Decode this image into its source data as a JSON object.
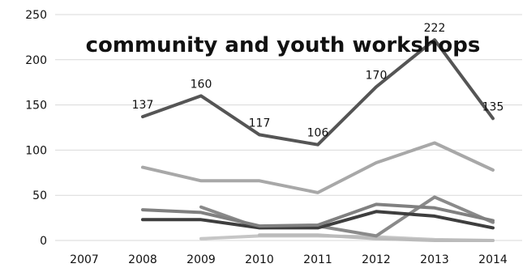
{
  "chart_data": {
    "type": "line",
    "title": "community and youth workshops",
    "categories": [
      "2007",
      "2008",
      "2009",
      "2010",
      "2011",
      "2012",
      "2013",
      "2014"
    ],
    "y_ticks": [
      "0",
      "50",
      "100",
      "150",
      "200",
      "250"
    ],
    "ylim": [
      0,
      250
    ],
    "grid": true,
    "legend": "none",
    "series": [
      {
        "values": [
          null,
          137,
          160,
          117,
          106,
          170,
          222,
          135
        ],
        "color": "#555555",
        "labels": [
          "",
          "137",
          "160",
          "117",
          "106",
          "170",
          "222",
          "135"
        ]
      },
      {
        "values": [
          null,
          81,
          66,
          66,
          53,
          86,
          108,
          78
        ],
        "color": "#a8a8a8"
      },
      {
        "values": [
          null,
          34,
          31,
          16,
          17,
          40,
          36,
          22
        ],
        "color": "#808080"
      },
      {
        "values": [
          null,
          23,
          23,
          14,
          14,
          32,
          27,
          14
        ],
        "color": "#3e3e3e"
      },
      {
        "values": [
          null,
          null,
          37,
          14,
          16,
          5,
          48,
          20
        ],
        "color": "#8a8a8a"
      },
      {
        "values": [
          null,
          null,
          null,
          6,
          6,
          2,
          0,
          0
        ],
        "color": "#bbbbbb"
      },
      {
        "values": [
          null,
          null,
          2,
          5,
          5,
          4,
          1,
          0
        ],
        "color": "#c6c6c6"
      }
    ]
  }
}
